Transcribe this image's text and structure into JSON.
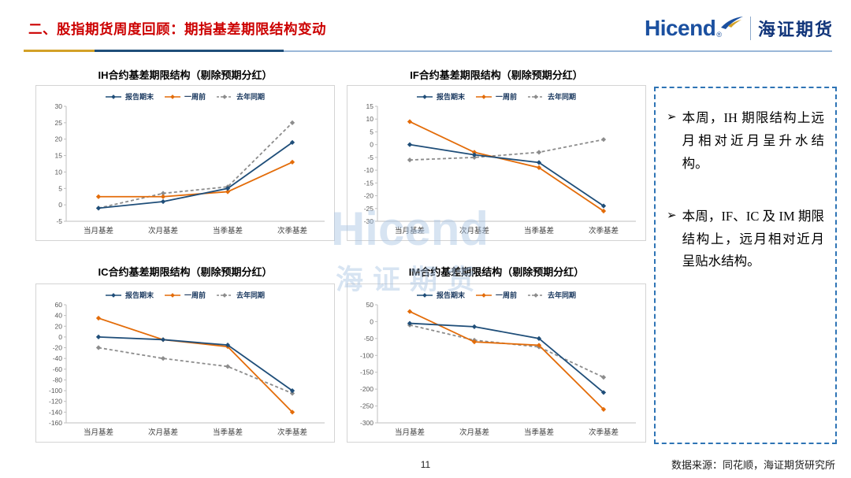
{
  "header": {
    "title": "二、股指期货周度回顾：期指基差期限结构变动"
  },
  "logo": {
    "brand": "Hicend",
    "registered": "®",
    "brand_cn": "海证期货"
  },
  "watermark": {
    "line1": "Hicend",
    "line2": "海证期货"
  },
  "notes": {
    "bullet_marker": "➢",
    "bullets": [
      "本周，IH 期限结构上远月相对近月呈升水结构。",
      "本周，IF、IC 及 IM 期限结构上，远月相对近月呈贴水结构。"
    ]
  },
  "footer": {
    "page_number": "11",
    "source": "数据来源：同花顺，海证期货研究所"
  },
  "chart_data": [
    {
      "type": "line",
      "title": "IH合约基差期限结构（剔除预期分红）",
      "categories": [
        "当月基差",
        "次月基差",
        "当季基差",
        "次季基差"
      ],
      "ylim": [
        -5,
        30
      ],
      "ystep": 5,
      "grid": false,
      "legend_position": "top",
      "series": [
        {
          "name": "报告期末",
          "color": "#1f4e79",
          "style": "solid",
          "values": [
            -1,
            1,
            5,
            19
          ]
        },
        {
          "name": "一周前",
          "color": "#e36c09",
          "style": "solid",
          "values": [
            2.5,
            2.5,
            4,
            13
          ]
        },
        {
          "name": "去年同期",
          "color": "#8c8c8c",
          "style": "dashed",
          "values": [
            -1,
            3.5,
            5.5,
            25
          ]
        }
      ]
    },
    {
      "type": "line",
      "title": "IF合约基差期限结构（剔除预期分红）",
      "categories": [
        "当月基差",
        "次月基差",
        "当季基差",
        "次季基差"
      ],
      "ylim": [
        -30,
        15
      ],
      "ystep": 5,
      "grid": false,
      "legend_position": "top",
      "series": [
        {
          "name": "报告期末",
          "color": "#1f4e79",
          "style": "solid",
          "values": [
            0,
            -4,
            -7,
            -24
          ]
        },
        {
          "name": "一周前",
          "color": "#e36c09",
          "style": "solid",
          "values": [
            9,
            -3,
            -9,
            -26
          ]
        },
        {
          "name": "去年同期",
          "color": "#8c8c8c",
          "style": "dashed",
          "values": [
            -6,
            -5,
            -3,
            2
          ]
        }
      ]
    },
    {
      "type": "line",
      "title": "IC合约基差期限结构（剔除预期分红）",
      "categories": [
        "当月基差",
        "次月基差",
        "当季基差",
        "次季基差"
      ],
      "ylim": [
        -160,
        60
      ],
      "ystep": 20,
      "grid": false,
      "legend_position": "top",
      "series": [
        {
          "name": "报告期末",
          "color": "#1f4e79",
          "style": "solid",
          "values": [
            0,
            -5,
            -15,
            -100
          ]
        },
        {
          "name": "一周前",
          "color": "#e36c09",
          "style": "solid",
          "values": [
            35,
            -5,
            -18,
            -140
          ]
        },
        {
          "name": "去年同期",
          "color": "#8c8c8c",
          "style": "dashed",
          "values": [
            -20,
            -40,
            -55,
            -105
          ]
        }
      ]
    },
    {
      "type": "line",
      "title": "IM合约基差期限结构（剔除预期分红）",
      "categories": [
        "当月基差",
        "次月基差",
        "当季基差",
        "次季基差"
      ],
      "ylim": [
        -300,
        50
      ],
      "ystep": 50,
      "grid": false,
      "legend_position": "top",
      "series": [
        {
          "name": "报告期末",
          "color": "#1f4e79",
          "style": "solid",
          "values": [
            -5,
            -15,
            -50,
            -210
          ]
        },
        {
          "name": "一周前",
          "color": "#e36c09",
          "style": "solid",
          "values": [
            30,
            -60,
            -70,
            -260
          ]
        },
        {
          "name": "去年同期",
          "color": "#8c8c8c",
          "style": "dashed",
          "values": [
            -10,
            -55,
            -75,
            -165
          ]
        }
      ]
    }
  ]
}
